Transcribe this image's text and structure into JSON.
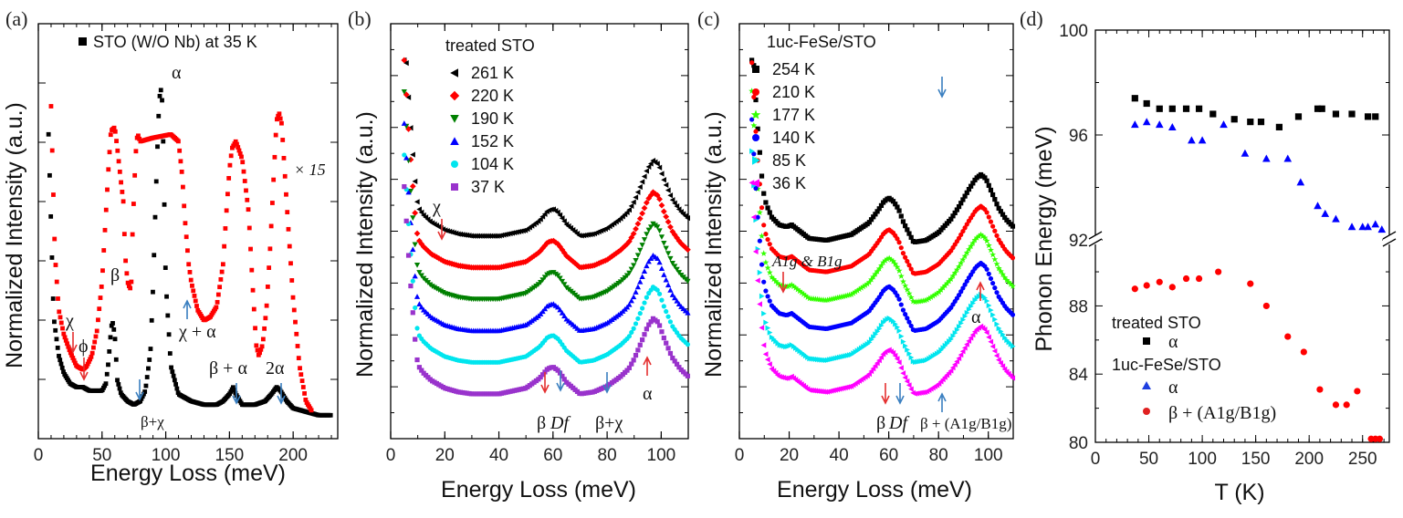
{
  "chart_data": [
    {
      "type": "line",
      "panel_label": "(a)",
      "xlabel": "Energy Loss (meV)",
      "ylabel": "Normalized Intensity (a.u.)",
      "xlim": [
        0,
        235
      ],
      "ylim": [
        0,
        100
      ],
      "xticks": [
        "0",
        "50",
        "100",
        "150",
        "200"
      ],
      "xtick_values": [
        0,
        50,
        100,
        150,
        200
      ],
      "legend": [
        {
          "marker": "square",
          "color": "#000000",
          "label": "STO (W/O Nb) at 35 K"
        }
      ],
      "scale_note": "× 15",
      "series": [
        {
          "name": "STO (W/O Nb) at 35 K",
          "color": "#000000",
          "x": [
            8,
            12,
            16,
            20,
            25,
            30,
            35,
            40,
            45,
            50,
            53,
            55,
            57,
            58,
            60,
            62,
            65,
            70,
            75,
            80,
            84,
            88,
            90,
            92,
            94,
            95,
            96,
            97,
            98,
            100,
            104,
            110,
            120,
            130,
            140,
            145,
            150,
            153,
            155,
            160,
            170,
            178,
            183,
            187,
            190,
            195,
            200,
            210,
            220,
            230
          ],
          "y": [
            82,
            30,
            19,
            14,
            11,
            10,
            10,
            9,
            9,
            9,
            11,
            17,
            26,
            29,
            25,
            12,
            8,
            6,
            5,
            6,
            9,
            20,
            38,
            62,
            84,
            92,
            95,
            93,
            80,
            40,
            16,
            8,
            6,
            5,
            5,
            6,
            8,
            10,
            8,
            5,
            5,
            6,
            8,
            10,
            9,
            6,
            4,
            3,
            2,
            2
          ]
        },
        {
          "name": "STO × 15",
          "color": "#ff0000",
          "x": [
            10,
            13,
            16,
            20,
            25,
            30,
            35,
            38,
            42,
            46,
            50,
            55,
            57,
            60,
            62,
            65,
            67,
            68,
            70,
            72,
            73,
            74,
            76,
            77,
            78,
            80,
            90,
            104,
            110,
            113,
            115,
            118,
            120,
            125,
            130,
            135,
            140,
            145,
            148,
            150,
            152,
            155,
            160,
            165,
            168,
            171,
            173,
            176,
            179,
            182,
            185,
            187,
            189,
            191,
            195,
            200,
            205,
            210,
            215
          ],
          "y": [
            90,
            48,
            32,
            25,
            20,
            16,
            15,
            16,
            19,
            26,
            40,
            72,
            83,
            84,
            78,
            68,
            62,
            48,
            40,
            38,
            40,
            55,
            73,
            80,
            82,
            80,
            81,
            82,
            80,
            70,
            58,
            45,
            40,
            32,
            29,
            30,
            33,
            45,
            62,
            72,
            78,
            80,
            75,
            60,
            40,
            22,
            19,
            22,
            32,
            50,
            72,
            86,
            88,
            85,
            62,
            35,
            16,
            6,
            3
          ]
        }
      ],
      "annotations": [
        "χ",
        "ϕ",
        "β",
        "α",
        "χ + α",
        "β + α",
        "2α",
        "β+χ"
      ]
    },
    {
      "type": "line",
      "panel_label": "(b)",
      "xlabel": "Energy Loss (meV)",
      "ylabel": "Normalized Intensity (a.u.)",
      "xlim": [
        0,
        110
      ],
      "ylim": [
        0,
        100
      ],
      "xticks": [
        "0",
        "20",
        "40",
        "60",
        "80",
        "100"
      ],
      "xtick_values": [
        0,
        20,
        40,
        60,
        80,
        100
      ],
      "legend_title": "treated STO",
      "series": [
        {
          "name": "261 K",
          "color": "#000000",
          "marker": "triangle-left",
          "offset": 50
        },
        {
          "name": "220 K",
          "color": "#ff0000",
          "marker": "diamond",
          "offset": 40
        },
        {
          "name": "190 K",
          "color": "#008000",
          "marker": "triangle-down",
          "offset": 30
        },
        {
          "name": "152 K",
          "color": "#0000ff",
          "marker": "triangle-up",
          "offset": 20
        },
        {
          "name": "104 K",
          "color": "#00e5ee",
          "marker": "circle",
          "offset": 10
        },
        {
          "name": "37 K",
          "color": "#9933cc",
          "marker": "square",
          "offset": 0
        }
      ],
      "shared_profile": {
        "x": [
          5,
          7,
          9,
          10,
          12,
          15,
          20,
          25,
          30,
          40,
          50,
          55,
          58,
          60,
          62,
          65,
          70,
          75,
          80,
          85,
          88,
          90,
          93,
          95,
          97,
          99,
          101,
          104,
          107,
          110
        ],
        "y": [
          80,
          50,
          30,
          24,
          20,
          16,
          12,
          10,
          9,
          9,
          12,
          17,
          22,
          23,
          21,
          15,
          9,
          10,
          13,
          18,
          22,
          27,
          37,
          44,
          48,
          46,
          38,
          28,
          22,
          18
        ]
      },
      "annotations": [
        "χ",
        "β",
        "Df",
        "β+χ",
        "α"
      ]
    },
    {
      "type": "line",
      "panel_label": "(c)",
      "xlabel": "Energy Loss (meV)",
      "ylabel": "Normalized Intensity (a.u.)",
      "xlim": [
        0,
        110
      ],
      "ylim": [
        0,
        100
      ],
      "xticks": [
        "0",
        "20",
        "40",
        "60",
        "80",
        "100"
      ],
      "xtick_values": [
        0,
        20,
        40,
        60,
        80,
        100
      ],
      "legend_title": "1uc-FeSe/STO",
      "series": [
        {
          "name": "254 K",
          "color": "#000000",
          "marker": "square",
          "offset": 48
        },
        {
          "name": "210 K",
          "color": "#ff0000",
          "marker": "circle",
          "offset": 38
        },
        {
          "name": "177 K",
          "color": "#33ff00",
          "marker": "star",
          "offset": 29
        },
        {
          "name": "140 K",
          "color": "#0000ff",
          "marker": "circle",
          "offset": 20
        },
        {
          "name": "85 K",
          "color": "#00e5ee",
          "marker": "triangle-right",
          "offset": 10
        },
        {
          "name": "36 K",
          "color": "#ff00ff",
          "marker": "triangle-left",
          "offset": 0
        }
      ],
      "shared_profile": {
        "x": [
          5,
          7,
          9,
          11,
          13,
          16,
          19,
          21,
          24,
          28,
          35,
          45,
          52,
          56,
          58,
          60,
          62,
          64,
          66,
          70,
          75,
          80,
          85,
          88,
          92,
          95,
          97,
          99,
          101,
          104,
          107,
          110
        ],
        "y": [
          82,
          52,
          36,
          28,
          22,
          18,
          17,
          18,
          15,
          11,
          10,
          13,
          19,
          26,
          30,
          32,
          30,
          26,
          19,
          9,
          10,
          14,
          21,
          27,
          36,
          42,
          44,
          42,
          36,
          27,
          21,
          17
        ]
      },
      "annotations": [
        "A1g & B1g",
        "β",
        "Df",
        "β + (A1g/B1g)",
        "α"
      ]
    },
    {
      "type": "scatter",
      "panel_label": "(d)",
      "xlabel": "T (K)",
      "ylabel": "Phonon Energy (meV)",
      "xlim": [
        0,
        275
      ],
      "xticks": [
        "0",
        "50",
        "100",
        "150",
        "200",
        "250"
      ],
      "xtick_values": [
        0,
        50,
        100,
        150,
        200,
        250
      ],
      "broken_axis": {
        "upper": {
          "ylim": [
            92,
            100
          ],
          "yticks": [
            "92",
            "96",
            "100"
          ]
        },
        "lower": {
          "ylim": [
            80,
            91.5
          ],
          "yticks": [
            "80",
            "84",
            "88"
          ]
        }
      },
      "series": [
        {
          "name": "treated STO α",
          "color": "#000000",
          "marker": "square",
          "x": [
            37,
            48,
            60,
            72,
            85,
            97,
            110,
            130,
            145,
            155,
            172,
            190,
            208,
            212,
            225,
            240,
            255,
            262
          ],
          "y": [
            97.4,
            97.2,
            97.0,
            97.0,
            97.0,
            97.0,
            96.8,
            96.6,
            96.5,
            96.5,
            96.3,
            96.7,
            97.0,
            97.0,
            96.8,
            96.8,
            96.7,
            96.7
          ]
        },
        {
          "name": "1uc-FeSe/STO α",
          "color": "#0000ff",
          "marker": "triangle-up",
          "x": [
            37,
            48,
            60,
            72,
            90,
            100,
            120,
            140,
            160,
            180,
            192,
            208,
            215,
            225,
            240,
            250,
            255,
            262,
            268
          ],
          "y": [
            96.4,
            96.5,
            96.4,
            96.3,
            95.8,
            95.8,
            96.4,
            95.3,
            95.1,
            95.1,
            94.2,
            93.3,
            93.0,
            92.8,
            92.5,
            92.5,
            92.5,
            92.6,
            92.4
          ]
        },
        {
          "name": "1uc-FeSe/STO β + (A1g/B1g)",
          "color": "#ff0000",
          "marker": "circle",
          "x": [
            37,
            48,
            60,
            72,
            85,
            97,
            115,
            145,
            160,
            180,
            195,
            210,
            225,
            235,
            245,
            258,
            262,
            266
          ],
          "y": [
            89.0,
            89.2,
            89.4,
            89.1,
            89.6,
            89.6,
            90.0,
            89.3,
            88.0,
            86.2,
            85.3,
            83.1,
            82.2,
            82.2,
            83.0,
            80.2,
            80.2,
            80.2
          ]
        }
      ],
      "legend": [
        "treated STO",
        "α",
        "1uc-FeSe/STO",
        "α",
        "β + (A1g/B1g)"
      ]
    }
  ]
}
